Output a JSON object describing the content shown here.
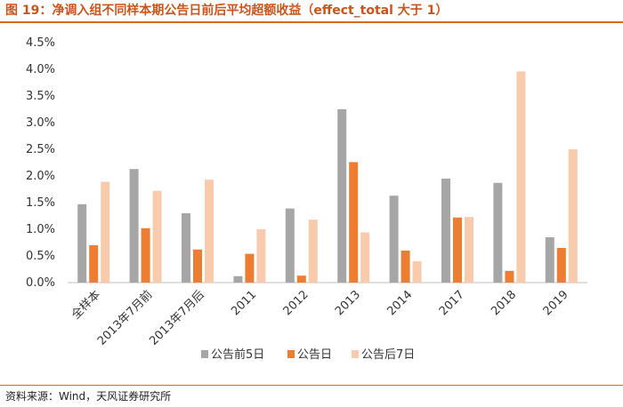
{
  "figure": {
    "label": "图 19：",
    "title": "净调入组不同样本期公告日前后平均超额收益（effect_total 大于 1）",
    "source": "资料来源：Wind，天风证券研究所"
  },
  "chart_data": {
    "type": "bar",
    "categories": [
      "全样本",
      "2013年7月前",
      "2013年7月后",
      "2011",
      "2012",
      "2013",
      "2014",
      "2017",
      "2018",
      "2019"
    ],
    "series": [
      {
        "name": "公告前5日",
        "color": "#a6a6a6",
        "values": [
          0.0147,
          0.0213,
          0.013,
          0.0012,
          0.0139,
          0.0325,
          0.0163,
          0.0195,
          0.0187,
          0.0085
        ]
      },
      {
        "name": "公告日",
        "color": "#ed7d31",
        "values": [
          0.007,
          0.0102,
          0.0062,
          0.0054,
          0.0013,
          0.0226,
          0.006,
          0.0122,
          0.0022,
          0.0065
        ]
      },
      {
        "name": "公告后7日",
        "color": "#f8cbad",
        "values": [
          0.0189,
          0.0172,
          0.0193,
          0.01,
          0.0118,
          0.0094,
          0.004,
          0.0123,
          0.0396,
          0.025
        ]
      }
    ],
    "ylim": [
      0,
      0.045
    ],
    "yticks": [
      0,
      0.005,
      0.01,
      0.015,
      0.02,
      0.025,
      0.03,
      0.035,
      0.04,
      0.045
    ],
    "ytick_labels": [
      "0.0%",
      "0.5%",
      "1.0%",
      "1.5%",
      "2.0%",
      "2.5%",
      "3.0%",
      "3.5%",
      "4.0%",
      "4.5%"
    ],
    "grid": false,
    "legend_position": "bottom"
  }
}
